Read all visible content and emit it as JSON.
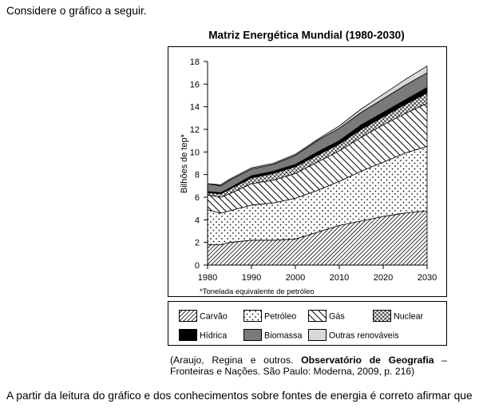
{
  "question": {
    "intro": "Considere o gráfico a seguir.",
    "prompt": "A partir da leitura do gráfico e dos conhecimentos sobre fontes de energia é correto afirmar que"
  },
  "source": {
    "prefix": "(Araujo, Regina e outros.",
    "book_title": "Observatório de Geografia",
    "dash": "–",
    "rest": "Fronteiras e Nações. São Paulo: Moderna, 2009, p. 216)"
  },
  "chart_data": {
    "type": "area",
    "stacked": true,
    "title": "Matriz Energética Mundial (1980-2030)",
    "ylabel": "Bilhões de tep*",
    "footnote": "*Tonelada equivalente de petróleo",
    "xlim": [
      1980,
      2030
    ],
    "ylim": [
      0,
      18
    ],
    "xticks": [
      1980,
      1990,
      2000,
      2010,
      2020,
      2030
    ],
    "yticks": [
      0,
      2,
      4,
      6,
      8,
      10,
      12,
      14,
      16,
      18
    ],
    "grid": false,
    "legend_position": "bottom",
    "x": [
      1980,
      1983,
      1985,
      1990,
      1995,
      2000,
      2005,
      2010,
      2015,
      2020,
      2025,
      2030
    ],
    "series": [
      {
        "name": "Carvão",
        "values": [
          1.8,
          1.8,
          2.0,
          2.2,
          2.2,
          2.3,
          2.9,
          3.5,
          3.9,
          4.3,
          4.6,
          4.8
        ]
      },
      {
        "name": "Petróleo",
        "values": [
          3.1,
          2.8,
          2.8,
          3.1,
          3.3,
          3.6,
          3.7,
          3.9,
          4.4,
          4.8,
          5.3,
          5.7
        ]
      },
      {
        "name": "Gás",
        "values": [
          1.3,
          1.4,
          1.5,
          1.9,
          2.0,
          2.2,
          2.5,
          2.7,
          3.0,
          3.3,
          3.5,
          3.8
        ]
      },
      {
        "name": "Nuclear",
        "values": [
          0.2,
          0.3,
          0.4,
          0.5,
          0.6,
          0.6,
          0.6,
          0.6,
          0.7,
          0.7,
          0.8,
          0.9
        ]
      },
      {
        "name": "Hídrica",
        "color": "#000000",
        "values": [
          0.1,
          0.1,
          0.1,
          0.2,
          0.2,
          0.2,
          0.3,
          0.3,
          0.4,
          0.4,
          0.4,
          0.5
        ]
      },
      {
        "name": "Biomassa",
        "color": "#7a7a7a",
        "values": [
          0.7,
          0.6,
          0.7,
          0.6,
          0.6,
          0.8,
          1.0,
          1.1,
          1.1,
          1.2,
          1.3,
          1.3
        ]
      },
      {
        "name": "Outras renováveis",
        "color": "#d9d9d9",
        "values": [
          0.0,
          0.1,
          0.1,
          0.1,
          0.1,
          0.1,
          0.1,
          0.2,
          0.3,
          0.4,
          0.5,
          0.6
        ]
      }
    ]
  }
}
